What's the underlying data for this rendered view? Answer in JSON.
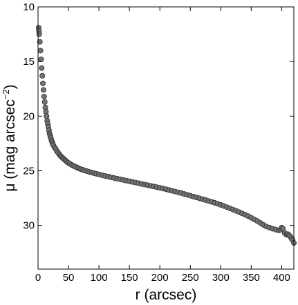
{
  "chart_data": {
    "type": "scatter",
    "title": "",
    "xlabel": "r (arcsec)",
    "ylabel": "μ (mag arcsec",
    "ylabel_superscript": "−2",
    "ylabel_close": ")",
    "xlim": [
      0,
      420
    ],
    "ylim": [
      34,
      10
    ],
    "y_inverted": true,
    "grid": false,
    "x_ticks": [
      {
        "value": 0,
        "label": "0"
      },
      {
        "value": 50,
        "label": "50"
      },
      {
        "value": 100,
        "label": "100"
      },
      {
        "value": 150,
        "label": "150"
      },
      {
        "value": 200,
        "label": "200"
      },
      {
        "value": 250,
        "label": "250"
      },
      {
        "value": 300,
        "label": "300"
      },
      {
        "value": 350,
        "label": "350"
      },
      {
        "value": 400,
        "label": "400"
      }
    ],
    "y_ticks": [
      {
        "value": 10,
        "label": "10"
      },
      {
        "value": 15,
        "label": "15"
      },
      {
        "value": 20,
        "label": "20"
      },
      {
        "value": 25,
        "label": "25"
      },
      {
        "value": 30,
        "label": "30"
      }
    ],
    "marker_color": "#737373",
    "marker_edge_color": "#2b2b2b",
    "series": [
      {
        "values": [
          [
            1,
            11.9
          ],
          [
            1.5,
            12.2
          ],
          [
            2,
            12.5
          ],
          [
            3,
            13.2
          ],
          [
            4,
            14.0
          ],
          [
            5,
            14.8
          ],
          [
            6,
            15.6
          ],
          [
            7,
            16.3
          ],
          [
            8,
            17.0
          ],
          [
            9,
            17.6
          ],
          [
            10,
            18.2
          ],
          [
            11,
            18.7
          ],
          [
            12,
            19.2
          ],
          [
            13,
            19.6
          ],
          [
            14,
            20.0
          ],
          [
            15,
            20.4
          ],
          [
            16,
            20.7
          ],
          [
            17,
            21.0
          ],
          [
            18,
            21.3
          ],
          [
            19,
            21.6
          ],
          [
            20,
            21.8
          ],
          [
            21,
            22.0
          ],
          [
            22,
            22.2
          ],
          [
            23,
            22.35
          ],
          [
            24,
            22.5
          ],
          [
            25,
            22.65
          ],
          [
            27,
            22.85
          ],
          [
            29,
            23.0
          ],
          [
            31,
            23.2
          ],
          [
            33,
            23.35
          ],
          [
            35,
            23.5
          ],
          [
            37,
            23.65
          ],
          [
            39,
            23.75
          ],
          [
            41,
            23.85
          ],
          [
            43,
            23.95
          ],
          [
            45,
            24.05
          ],
          [
            47,
            24.15
          ],
          [
            49,
            24.25
          ],
          [
            52,
            24.35
          ],
          [
            55,
            24.45
          ],
          [
            58,
            24.55
          ],
          [
            61,
            24.62
          ],
          [
            64,
            24.7
          ],
          [
            67,
            24.78
          ],
          [
            70,
            24.85
          ],
          [
            73,
            24.9
          ],
          [
            76,
            24.96
          ],
          [
            80,
            25.03
          ],
          [
            84,
            25.1
          ],
          [
            88,
            25.16
          ],
          [
            92,
            25.22
          ],
          [
            96,
            25.28
          ],
          [
            100,
            25.33
          ],
          [
            105,
            25.4
          ],
          [
            110,
            25.47
          ],
          [
            115,
            25.53
          ],
          [
            120,
            25.6
          ],
          [
            125,
            25.66
          ],
          [
            130,
            25.72
          ],
          [
            135,
            25.78
          ],
          [
            140,
            25.84
          ],
          [
            145,
            25.9
          ],
          [
            150,
            25.96
          ],
          [
            155,
            26.02
          ],
          [
            160,
            26.08
          ],
          [
            165,
            26.14
          ],
          [
            170,
            26.2
          ],
          [
            175,
            26.26
          ],
          [
            180,
            26.32
          ],
          [
            185,
            26.38
          ],
          [
            190,
            26.44
          ],
          [
            195,
            26.5
          ],
          [
            200,
            26.56
          ],
          [
            205,
            26.63
          ],
          [
            210,
            26.69
          ],
          [
            215,
            26.76
          ],
          [
            220,
            26.83
          ],
          [
            225,
            26.9
          ],
          [
            230,
            26.97
          ],
          [
            235,
            27.04
          ],
          [
            240,
            27.12
          ],
          [
            245,
            27.2
          ],
          [
            250,
            27.28
          ],
          [
            255,
            27.36
          ],
          [
            260,
            27.44
          ],
          [
            265,
            27.52
          ],
          [
            270,
            27.6
          ],
          [
            275,
            27.68
          ],
          [
            280,
            27.76
          ],
          [
            285,
            27.84
          ],
          [
            290,
            27.93
          ],
          [
            295,
            28.02
          ],
          [
            300,
            28.12
          ],
          [
            305,
            28.22
          ],
          [
            310,
            28.33
          ],
          [
            315,
            28.44
          ],
          [
            320,
            28.55
          ],
          [
            325,
            28.66
          ],
          [
            330,
            28.78
          ],
          [
            335,
            28.9
          ],
          [
            340,
            29.02
          ],
          [
            345,
            29.15
          ],
          [
            350,
            29.3
          ],
          [
            355,
            29.45
          ],
          [
            360,
            29.6
          ],
          [
            365,
            29.78
          ],
          [
            370,
            29.95
          ],
          [
            375,
            30.1
          ],
          [
            380,
            30.2
          ],
          [
            385,
            30.3
          ],
          [
            390,
            30.38
          ],
          [
            395,
            30.45
          ],
          [
            398,
            30.4
          ],
          [
            400,
            30.2
          ],
          [
            402,
            30.3
          ],
          [
            405,
            30.7
          ],
          [
            408,
            30.85
          ],
          [
            410,
            30.8
          ],
          [
            412,
            30.9
          ],
          [
            414,
            31.0
          ],
          [
            416,
            31.2
          ],
          [
            418,
            31.35
          ],
          [
            420,
            31.6
          ]
        ]
      }
    ]
  }
}
